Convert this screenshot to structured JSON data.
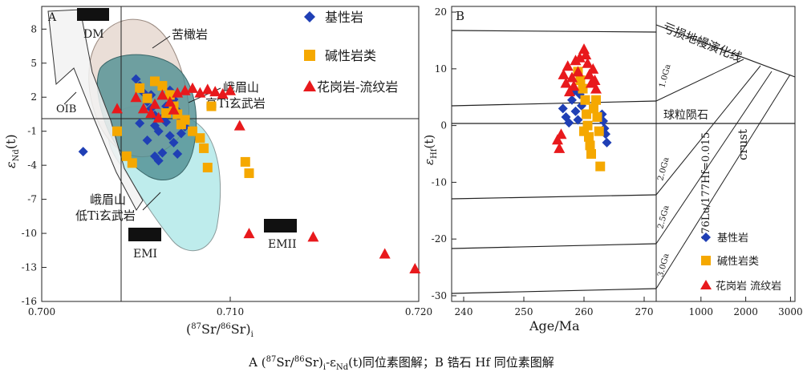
{
  "caption": "A (87Sr/86Sr)i-εNd(t)同位素图解；B 锆石 Hf 同位素图解",
  "chart_data": [
    {
      "id": "A",
      "type": "scatter",
      "panel_label": "A",
      "xlabel": "(87Sr/86Sr)i",
      "ylabel": "εNd(t)",
      "xlim": [
        0.7,
        0.72
      ],
      "ylim": [
        -16,
        10
      ],
      "x_ticks": [
        {
          "value": 0.7,
          "label": "0.700"
        },
        {
          "value": 0.71,
          "label": "0.710"
        },
        {
          "value": 0.72,
          "label": "0.720"
        }
      ],
      "y_ticks": [
        8,
        5,
        2,
        -1,
        -4,
        -7,
        -10,
        -13,
        -16
      ],
      "legend": [
        {
          "label": "基性岩",
          "shape": "diamond",
          "color": "#1f3fb5"
        },
        {
          "label": "碱性岩类",
          "shape": "square",
          "color": "#f5a800"
        },
        {
          "label": "花岗岩-流纹岩",
          "shape": "triangle",
          "color": "#e8191c"
        }
      ],
      "annotations": [
        {
          "text": "DM"
        },
        {
          "text": "苦橄岩"
        },
        {
          "text": "峨眉山"
        },
        {
          "text": "高Ti玄武岩"
        },
        {
          "text": "OIB"
        },
        {
          "text": "峨眉山"
        },
        {
          "text": "低Ti玄武岩"
        },
        {
          "text": "EMI"
        },
        {
          "text": "EMII"
        }
      ],
      "series": [
        {
          "name": "基性岩",
          "points": [
            [
              0.7022,
              -2.8
            ],
            [
              0.705,
              3.6
            ],
            [
              0.7052,
              3.0
            ],
            [
              0.7054,
              2.4
            ],
            [
              0.7056,
              1.6
            ],
            [
              0.7058,
              1.0
            ],
            [
              0.706,
              0.4
            ],
            [
              0.706,
              -0.5
            ],
            [
              0.7062,
              -1.0
            ],
            [
              0.7064,
              0.2
            ],
            [
              0.7066,
              1.2
            ],
            [
              0.7068,
              2.6
            ],
            [
              0.707,
              1.8
            ],
            [
              0.7072,
              0.8
            ],
            [
              0.7074,
              0.0
            ],
            [
              0.7076,
              -0.6
            ],
            [
              0.706,
              -3.2
            ],
            [
              0.7062,
              -3.6
            ],
            [
              0.7064,
              -2.9
            ],
            [
              0.7068,
              -1.4
            ],
            [
              0.707,
              -2.0
            ],
            [
              0.7072,
              -3.0
            ],
            [
              0.7074,
              -1.2
            ],
            [
              0.7052,
              -0.3
            ],
            [
              0.7056,
              -1.8
            ],
            [
              0.7058,
              2.2
            ],
            [
              0.7066,
              -0.2
            ],
            [
              0.707,
              1.5
            ]
          ]
        },
        {
          "name": "碱性岩类",
          "points": [
            [
              0.704,
              -1.0
            ],
            [
              0.7045,
              -3.2
            ],
            [
              0.7048,
              -3.8
            ],
            [
              0.7052,
              2.8
            ],
            [
              0.7056,
              1.9
            ],
            [
              0.706,
              3.4
            ],
            [
              0.7064,
              3.0
            ],
            [
              0.7068,
              2.2
            ],
            [
              0.707,
              1.2
            ],
            [
              0.7072,
              0.5
            ],
            [
              0.7076,
              0.0
            ],
            [
              0.708,
              -1.0
            ],
            [
              0.7084,
              -1.6
            ],
            [
              0.7086,
              -2.5
            ],
            [
              0.7088,
              -4.2
            ],
            [
              0.709,
              1.2
            ],
            [
              0.7108,
              -3.7
            ],
            [
              0.711,
              -4.7
            ],
            [
              0.7066,
              0.6
            ],
            [
              0.7074,
              -0.4
            ]
          ]
        },
        {
          "name": "花岗岩-流纹岩",
          "points": [
            [
              0.704,
              1.0
            ],
            [
              0.705,
              2.0
            ],
            [
              0.7054,
              1.0
            ],
            [
              0.7058,
              0.6
            ],
            [
              0.706,
              1.4
            ],
            [
              0.7064,
              2.2
            ],
            [
              0.7068,
              1.6
            ],
            [
              0.7072,
              2.4
            ],
            [
              0.7076,
              2.6
            ],
            [
              0.708,
              2.8
            ],
            [
              0.7084,
              2.4
            ],
            [
              0.7088,
              2.7
            ],
            [
              0.7092,
              2.5
            ],
            [
              0.7096,
              2.3
            ],
            [
              0.71,
              2.6
            ],
            [
              0.7105,
              -0.5
            ],
            [
              0.711,
              -10.0
            ],
            [
              0.7144,
              -10.3
            ],
            [
              0.7182,
              -11.8
            ],
            [
              0.7198,
              -13.1
            ],
            [
              0.7062,
              0.2
            ],
            [
              0.707,
              0.9
            ]
          ]
        }
      ]
    },
    {
      "id": "B",
      "type": "scatter",
      "panel_label": "B",
      "xlabel": "Age/Ma",
      "ylabel": "εHf",
      "xlim": [
        238,
        272
      ],
      "ylim": [
        -31,
        21
      ],
      "x_ticks": [
        240,
        250,
        260,
        270
      ],
      "y_ticks": [
        20,
        10,
        0,
        -10,
        -20,
        -30
      ],
      "legend": [
        {
          "label": "基性岩",
          "shape": "diamond",
          "color": "#1f3fb5"
        },
        {
          "label": "碱性岩类",
          "shape": "square",
          "color": "#f5a800"
        },
        {
          "label": "花岗岩 流纹岩",
          "shape": "triangle",
          "color": "#e8191c"
        }
      ],
      "side_panel": {
        "x_ticks": [
          1000,
          2000,
          3000
        ],
        "annotations": [
          {
            "text": "亏损地幔演化线"
          },
          {
            "text": "球粒陨石"
          },
          {
            "text": "crust"
          },
          {
            "text": "176Lu/177Hf=0.015"
          },
          {
            "text": "1.0Ga"
          },
          {
            "text": "2.0Ga"
          },
          {
            "text": "2.5Ga"
          },
          {
            "text": "3.0Ga"
          }
        ]
      },
      "series": [
        {
          "name": "基性岩",
          "points": [
            [
              256.5,
              3.0
            ],
            [
              257,
              1.5
            ],
            [
              257.5,
              0.5
            ],
            [
              258,
              4.5
            ],
            [
              258.3,
              6.0
            ],
            [
              258.6,
              2.5
            ],
            [
              259,
              1.0
            ],
            [
              259.3,
              5.5
            ],
            [
              259.6,
              3.5
            ],
            [
              263,
              2.0
            ],
            [
              263.2,
              0.8
            ],
            [
              263.4,
              -0.5
            ],
            [
              263.6,
              -1.5
            ],
            [
              263.8,
              -3.0
            ]
          ]
        },
        {
          "name": "碱性岩类",
          "points": [
            [
              259,
              9.5
            ],
            [
              259.4,
              8.0
            ],
            [
              259.8,
              6.5
            ],
            [
              260.2,
              4.5
            ],
            [
              260.4,
              2.0
            ],
            [
              260.6,
              0.0
            ],
            [
              260.8,
              -2.0
            ],
            [
              261,
              -3.5
            ],
            [
              261.2,
              -5.0
            ],
            [
              261.6,
              3.0
            ],
            [
              262,
              4.5
            ],
            [
              262.2,
              1.5
            ],
            [
              262.5,
              -1.0
            ],
            [
              262.7,
              -7.2
            ],
            [
              260,
              -1.0
            ]
          ]
        },
        {
          "name": "花岗岩 流纹岩",
          "points": [
            [
              255.6,
              -2.5
            ],
            [
              255.9,
              -4.0
            ],
            [
              256.2,
              -1.5
            ],
            [
              256.6,
              9.0
            ],
            [
              257,
              7.5
            ],
            [
              257.3,
              10.5
            ],
            [
              257.6,
              6.0
            ],
            [
              258,
              8.5
            ],
            [
              258.3,
              7.0
            ],
            [
              258.6,
              11.5
            ],
            [
              259,
              9.5
            ],
            [
              259.3,
              12.0
            ],
            [
              260,
              13.5
            ],
            [
              260.3,
              12.5
            ],
            [
              260.6,
              11.0
            ],
            [
              260.9,
              9.0
            ],
            [
              261.2,
              7.5
            ],
            [
              261.5,
              10.0
            ],
            [
              261.8,
              8.0
            ],
            [
              262,
              6.5
            ]
          ]
        }
      ]
    }
  ]
}
